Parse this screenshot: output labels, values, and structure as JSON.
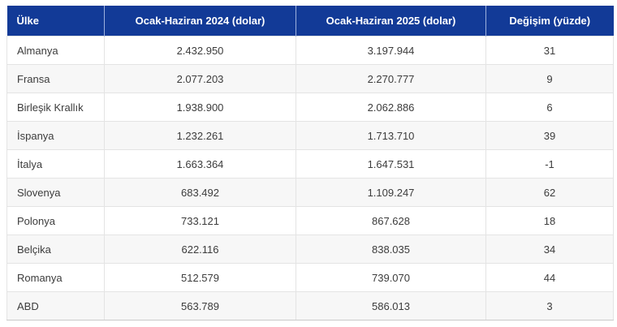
{
  "table": {
    "columns": [
      {
        "id": "country",
        "label": "Ülke"
      },
      {
        "id": "jan_jun_2024_usd",
        "label": "Ocak-Haziran 2024 (dolar)"
      },
      {
        "id": "jan_jun_2025_usd",
        "label": "Ocak-Haziran 2025 (dolar)"
      },
      {
        "id": "change_pct",
        "label": "Değişim (yüzde)"
      }
    ],
    "rows": [
      [
        "Almanya",
        "2.432.950",
        "3.197.944",
        "31"
      ],
      [
        "Fransa",
        "2.077.203",
        "2.270.777",
        "9"
      ],
      [
        "Birleşik Krallık",
        "1.938.900",
        "2.062.886",
        "6"
      ],
      [
        "İspanya",
        "1.232.261",
        "1.713.710",
        "39"
      ],
      [
        "İtalya",
        "1.663.364",
        "1.647.531",
        "-1"
      ],
      [
        "Slovenya",
        "683.492",
        "1.109.247",
        "62"
      ],
      [
        "Polonya",
        "733.121",
        "867.628",
        "18"
      ],
      [
        "Belçika",
        "622.116",
        "838.035",
        "34"
      ],
      [
        "Romanya",
        "512.579",
        "739.070",
        "44"
      ],
      [
        "ABD",
        "563.789",
        "586.013",
        "3"
      ]
    ]
  },
  "chart_data": {
    "type": "table",
    "columns": [
      "Ülke",
      "Ocak-Haziran 2024 (dolar)",
      "Ocak-Haziran 2025 (dolar)",
      "Değişim (yüzde)"
    ],
    "rows": [
      {
        "country": "Almanya",
        "jan_jun_2024_usd": 2432950,
        "jan_jun_2025_usd": 3197944,
        "change_pct": 31
      },
      {
        "country": "Fransa",
        "jan_jun_2024_usd": 2077203,
        "jan_jun_2025_usd": 2270777,
        "change_pct": 9
      },
      {
        "country": "Birleşik Krallık",
        "jan_jun_2024_usd": 1938900,
        "jan_jun_2025_usd": 2062886,
        "change_pct": 6
      },
      {
        "country": "İspanya",
        "jan_jun_2024_usd": 1232261,
        "jan_jun_2025_usd": 1713710,
        "change_pct": 39
      },
      {
        "country": "İtalya",
        "jan_jun_2024_usd": 1663364,
        "jan_jun_2025_usd": 1647531,
        "change_pct": -1
      },
      {
        "country": "Slovenya",
        "jan_jun_2024_usd": 683492,
        "jan_jun_2025_usd": 1109247,
        "change_pct": 62
      },
      {
        "country": "Polonya",
        "jan_jun_2024_usd": 733121,
        "jan_jun_2025_usd": 867628,
        "change_pct": 18
      },
      {
        "country": "Belçika",
        "jan_jun_2024_usd": 622116,
        "jan_jun_2025_usd": 838035,
        "change_pct": 34
      },
      {
        "country": "Romanya",
        "jan_jun_2024_usd": 512579,
        "jan_jun_2025_usd": 739070,
        "change_pct": 44
      },
      {
        "country": "ABD",
        "jan_jun_2024_usd": 563789,
        "jan_jun_2025_usd": 586013,
        "change_pct": 3
      }
    ]
  },
  "colors": {
    "header_bg": "#123a97",
    "header_text": "#ffffff",
    "row_alt_bg": "#f7f7f7",
    "body_text": "#3c3c3c",
    "grid_border": "#e4e4e4"
  }
}
